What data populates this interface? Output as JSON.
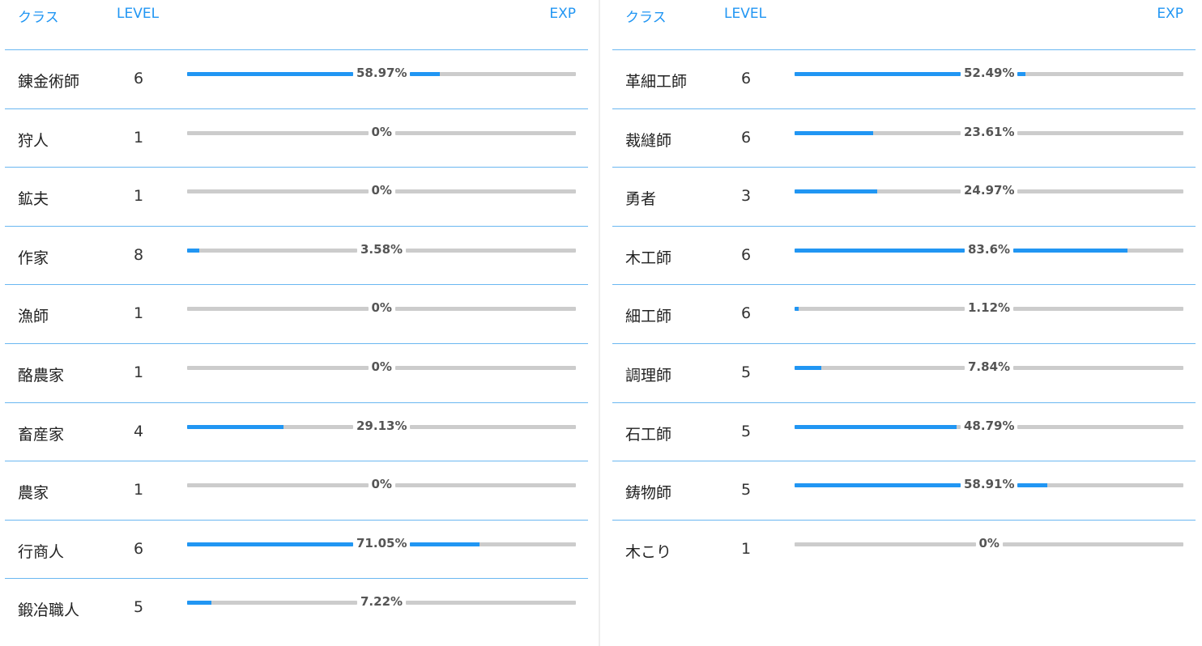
{
  "left_panel": {
    "headers": {
      "class": "クラス",
      "level": "LEVEL",
      "exp": "EXP"
    },
    "rows": [
      {
        "class": "錬金術師",
        "level": "6",
        "exp": "58.97%",
        "percent": 58.97
      },
      {
        "class": "狩人",
        "level": "1",
        "exp": "0%",
        "percent": 0
      },
      {
        "class": "鉱夫",
        "level": "1",
        "exp": "0%",
        "percent": 0
      },
      {
        "class": "作家",
        "level": "8",
        "exp": "3.58%",
        "percent": 3.58
      },
      {
        "class": "漁師",
        "level": "1",
        "exp": "0%",
        "percent": 0
      },
      {
        "class": "酪農家",
        "level": "1",
        "exp": "0%",
        "percent": 0
      },
      {
        "class": "畜産家",
        "level": "4",
        "exp": "29.13%",
        "percent": 29.13
      },
      {
        "class": "農家",
        "level": "1",
        "exp": "0%",
        "percent": 0
      },
      {
        "class": "行商人",
        "level": "6",
        "exp": "71.05%",
        "percent": 71.05
      },
      {
        "class": "鍛冶職人",
        "level": "5",
        "exp": "7.22%",
        "percent": 7.22
      }
    ]
  },
  "right_panel": {
    "headers": {
      "class": "クラス",
      "level": "LEVEL",
      "exp": "EXP"
    },
    "rows": [
      {
        "class": "革細工師",
        "level": "6",
        "exp": "52.49%",
        "percent": 52.49
      },
      {
        "class": "裁縫師",
        "level": "6",
        "exp": "23.61%",
        "percent": 23.61
      },
      {
        "class": "勇者",
        "level": "3",
        "exp": "24.97%",
        "percent": 24.97
      },
      {
        "class": "木工師",
        "level": "6",
        "exp": "83.6%",
        "percent": 83.6
      },
      {
        "class": "細工師",
        "level": "6",
        "exp": "1.12%",
        "percent": 1.12
      },
      {
        "class": "調理師",
        "level": "5",
        "exp": "7.84%",
        "percent": 7.84
      },
      {
        "class": "石工師",
        "level": "5",
        "exp": "48.79%",
        "percent": 48.79
      },
      {
        "class": "鋳物師",
        "level": "5",
        "exp": "58.91%",
        "percent": 58.91
      },
      {
        "class": "木こり",
        "level": "1",
        "exp": "0%",
        "percent": 0
      }
    ]
  },
  "colors": {
    "accent": "#2196f3",
    "track": "#cccccc",
    "row_border": "#6ab7f1"
  }
}
